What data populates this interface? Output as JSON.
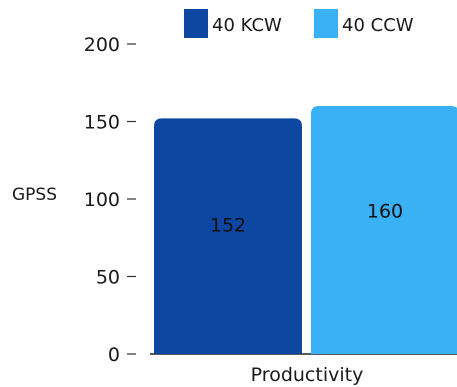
{
  "chart_data": {
    "type": "bar",
    "categories": [
      "Productivity"
    ],
    "series": [
      {
        "name": "40 KCW",
        "values": [
          152
        ],
        "color": "#0d47a1"
      },
      {
        "name": "40 CCW",
        "values": [
          160
        ],
        "color": "#3ab0f5"
      }
    ],
    "title": "",
    "xlabel": "",
    "ylabel": "GPSS",
    "ylim": [
      0,
      200
    ],
    "yticks": [
      0,
      50,
      100,
      150,
      200
    ],
    "grid": false,
    "legend_position": "top-right",
    "data_labels": true
  }
}
